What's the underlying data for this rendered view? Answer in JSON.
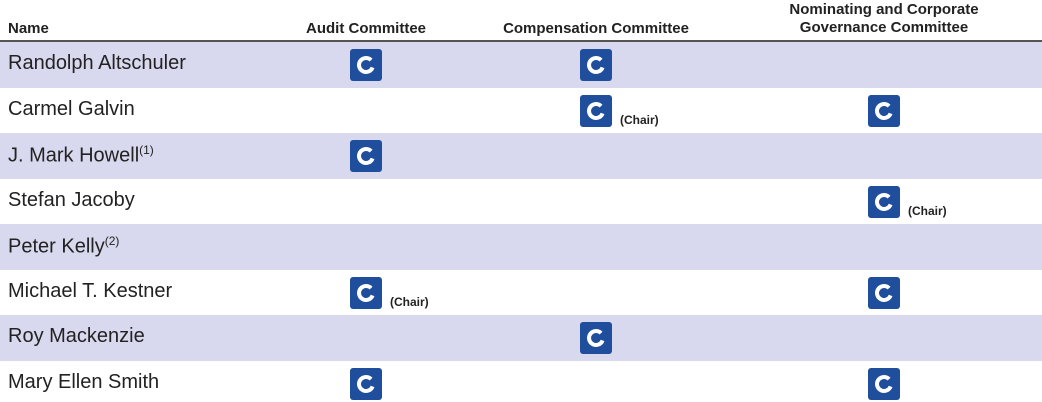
{
  "headers": {
    "name": "Name",
    "audit": "Audit Committee",
    "compensation": "Compensation Committee",
    "nominating_line1": "Nominating and Corporate",
    "nominating_line2": "Governance Committee"
  },
  "icon": "committee-member-icon",
  "accent": "#1f4e9c",
  "stripe": "#d8d9ee",
  "chair_label": "(Chair)",
  "rows": [
    {
      "name": "Randolph Altschuler",
      "note": "",
      "audit": "member",
      "compensation": "member",
      "nominating": ""
    },
    {
      "name": "Carmel Galvin",
      "note": "",
      "audit": "",
      "compensation": "chair",
      "nominating": "member"
    },
    {
      "name": "J. Mark Howell",
      "note": "(1)",
      "audit": "member",
      "compensation": "",
      "nominating": ""
    },
    {
      "name": "Stefan Jacoby",
      "note": "",
      "audit": "",
      "compensation": "",
      "nominating": "chair"
    },
    {
      "name": "Peter Kelly",
      "note": "(2)",
      "audit": "",
      "compensation": "",
      "nominating": ""
    },
    {
      "name": "Michael T. Kestner",
      "note": "",
      "audit": "chair",
      "compensation": "",
      "nominating": "member"
    },
    {
      "name": "Roy Mackenzie",
      "note": "",
      "audit": "",
      "compensation": "member",
      "nominating": ""
    },
    {
      "name": "Mary Ellen Smith",
      "note": "",
      "audit": "member",
      "compensation": "",
      "nominating": "member"
    }
  ]
}
